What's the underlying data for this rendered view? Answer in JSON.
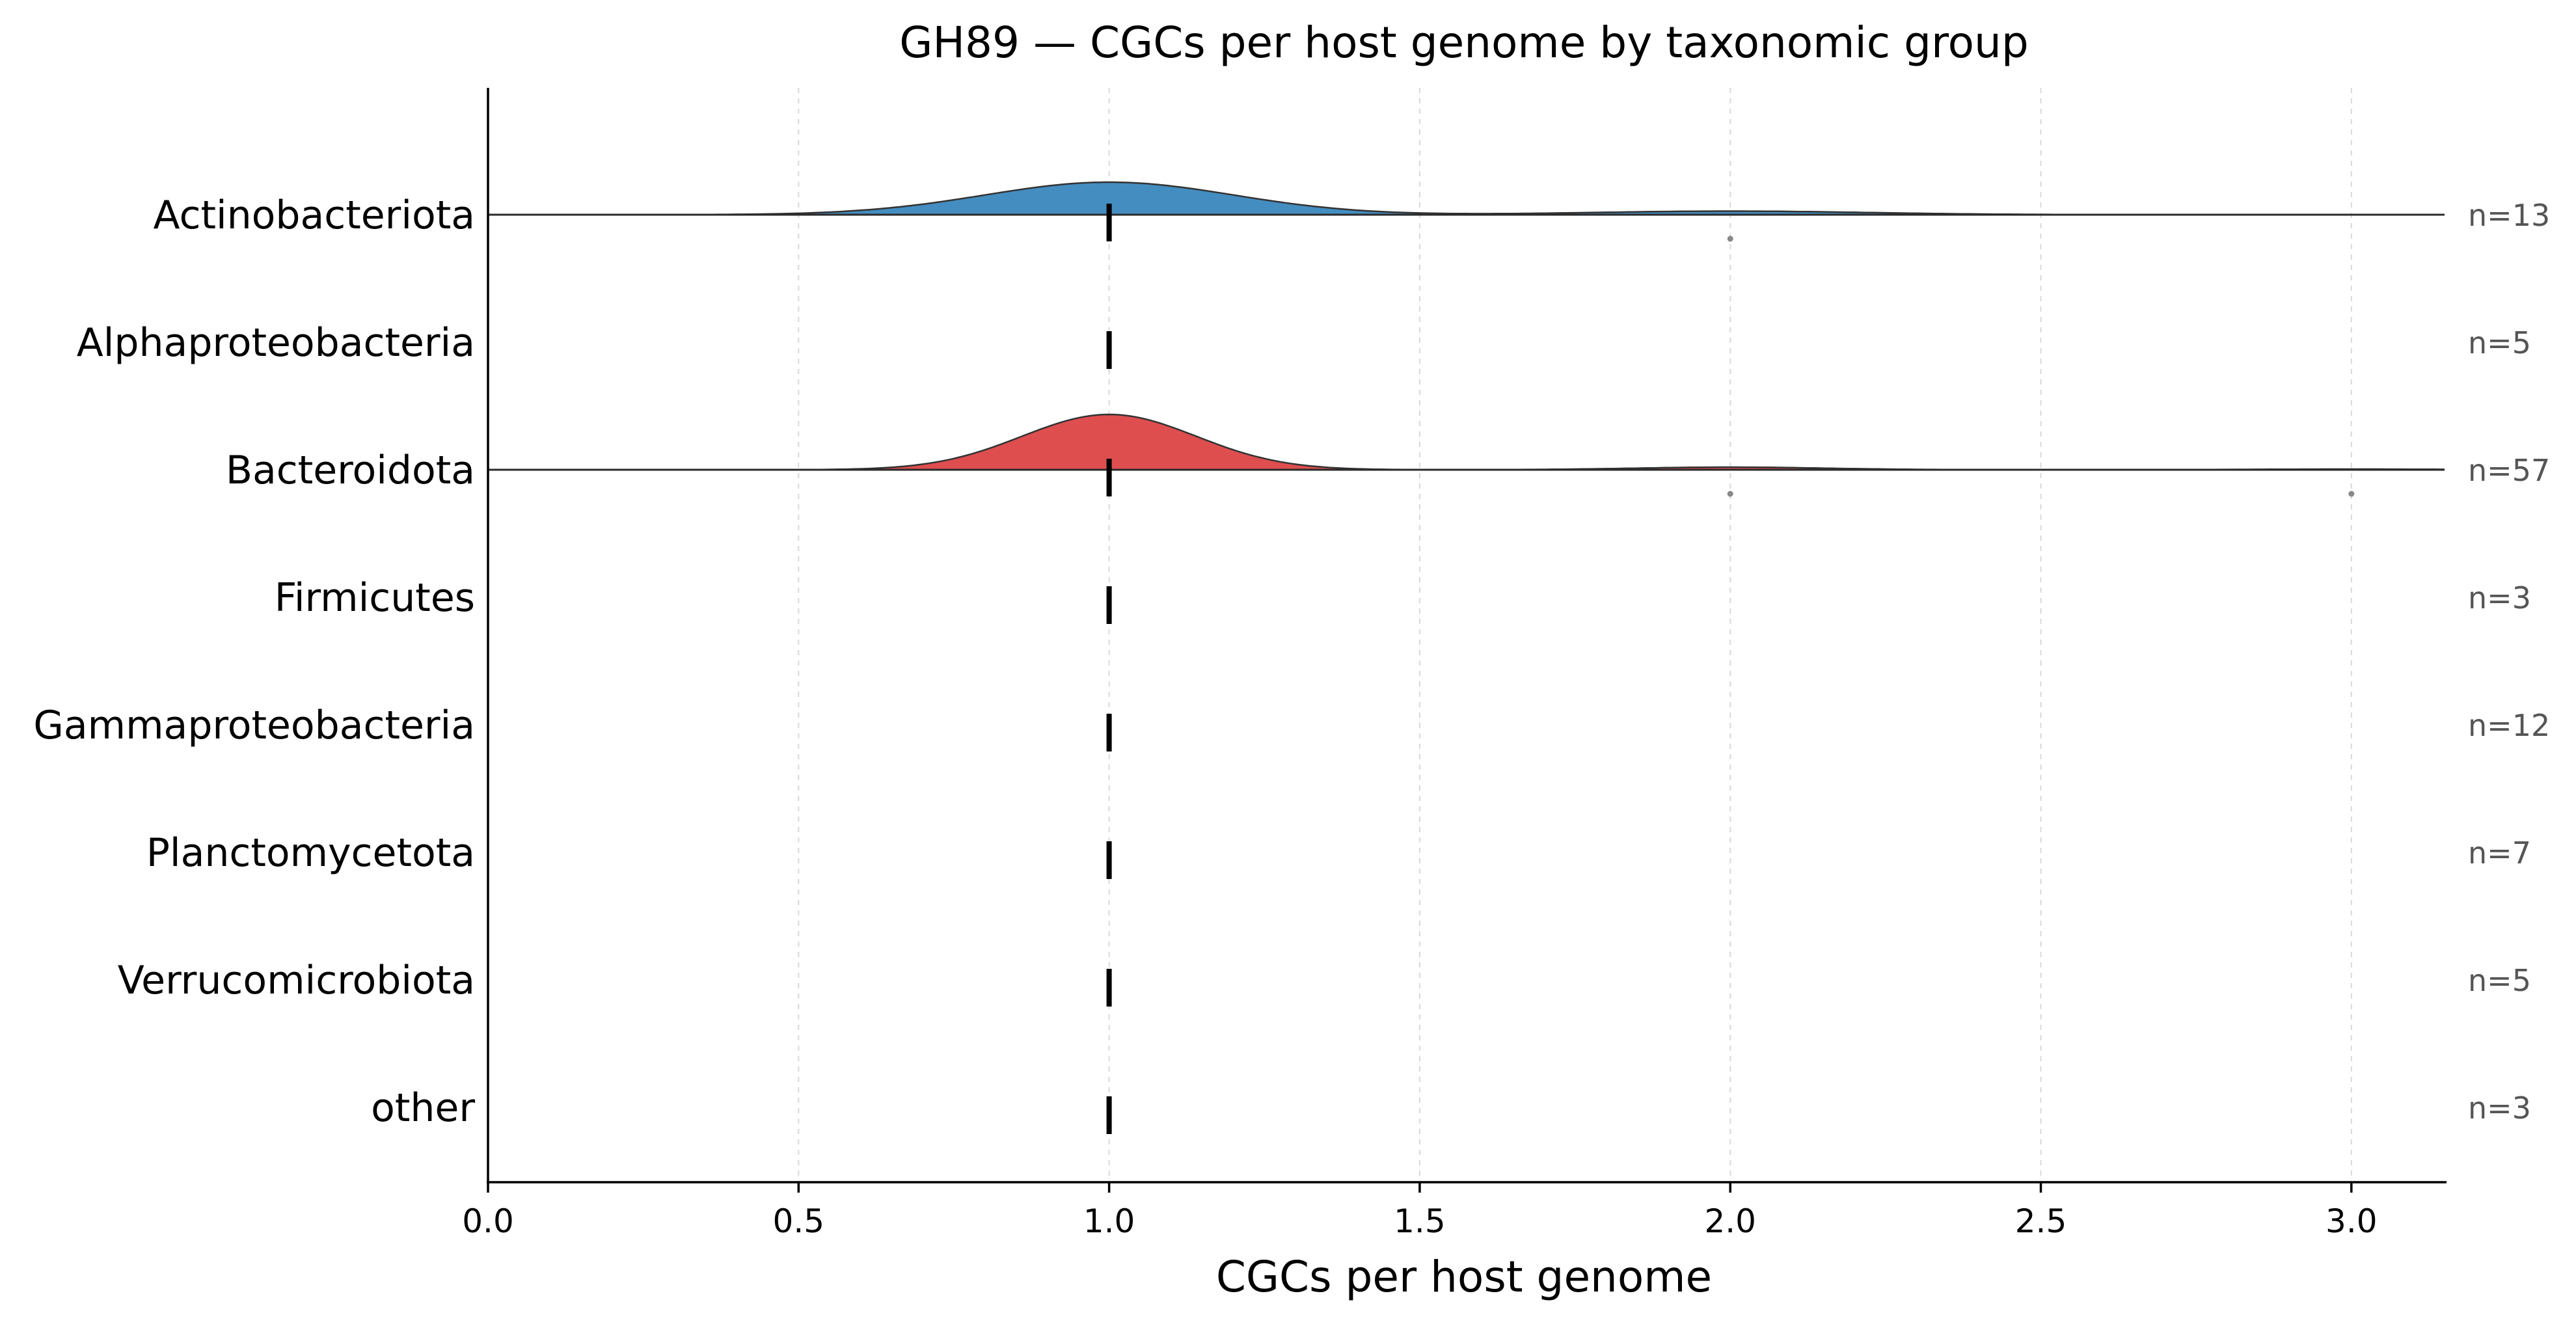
{
  "chart_data": {
    "type": "ridgeline",
    "title": "GH89 — CGCs per host genome by taxonomic group",
    "xlabel": "CGCs per host genome",
    "ylabel": "",
    "xlim": [
      0.0,
      3.15
    ],
    "xticks": [
      "0.0",
      "0.5",
      "1.0",
      "1.5",
      "2.0",
      "2.5",
      "3.0"
    ],
    "grid": "x, dashed",
    "groups": [
      {
        "name": "Actinobacteriota",
        "n_label": "n=13",
        "n": 13,
        "median": 1.0,
        "color": "#3a87bd",
        "density": {
          "components": [
            {
              "mean": 1.0,
              "sd": 0.2,
              "height": 1.0
            },
            {
              "mean": 2.0,
              "sd": 0.22,
              "height": 0.11
            }
          ]
        },
        "outliers": [
          2.0
        ]
      },
      {
        "name": "Alphaproteobacteria",
        "n_label": "n=5",
        "n": 5,
        "median": 1.0,
        "color": null,
        "density": null,
        "outliers": []
      },
      {
        "name": "Bacteroidota",
        "n_label": "n=57",
        "n": 57,
        "median": 1.0,
        "color": "#dc4546",
        "density": {
          "components": [
            {
              "mean": 1.0,
              "sd": 0.14,
              "height": 1.7
            },
            {
              "mean": 2.0,
              "sd": 0.15,
              "height": 0.08
            },
            {
              "mean": 3.0,
              "sd": 0.15,
              "height": 0.02
            }
          ]
        },
        "outliers": [
          2.0,
          3.0
        ]
      },
      {
        "name": "Firmicutes",
        "n_label": "n=3",
        "n": 3,
        "median": 1.0,
        "color": null,
        "density": null,
        "outliers": []
      },
      {
        "name": "Gammaproteobacteria",
        "n_label": "n=12",
        "n": 12,
        "median": 1.0,
        "color": null,
        "density": null,
        "outliers": []
      },
      {
        "name": "Planctomycetota",
        "n_label": "n=7",
        "n": 7,
        "median": 1.0,
        "color": null,
        "density": null,
        "outliers": []
      },
      {
        "name": "Verrucomicrobiota",
        "n_label": "n=5",
        "n": 5,
        "median": 1.0,
        "color": null,
        "density": null,
        "outliers": []
      },
      {
        "name": "other",
        "n_label": "n=3",
        "n": 3,
        "median": 1.0,
        "color": null,
        "density": null,
        "outliers": []
      }
    ]
  }
}
